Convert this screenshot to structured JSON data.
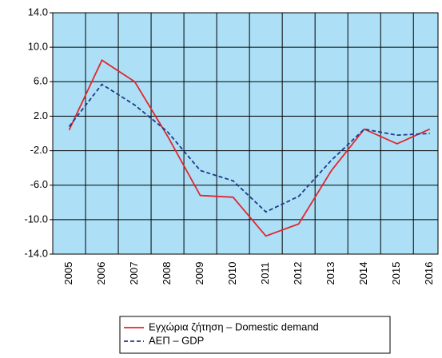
{
  "chart_data": {
    "type": "line",
    "categories": [
      "2005",
      "2006",
      "2007",
      "2008",
      "2009",
      "2010",
      "2011",
      "2012",
      "2013",
      "2014",
      "2015",
      "2016"
    ],
    "series": [
      {
        "name": "Εγχώρια ζήτηση – Domestic demand",
        "color": "#e3262d",
        "dash": false,
        "values": [
          0.4,
          8.5,
          6.0,
          -0.3,
          -7.2,
          -7.4,
          -11.9,
          -10.5,
          -4.3,
          0.5,
          -1.2,
          0.5
        ]
      },
      {
        "name": "ΑΕΠ – GDP",
        "color": "#1e3a8a",
        "dash": true,
        "values": [
          0.8,
          5.7,
          3.3,
          0.2,
          -4.3,
          -5.5,
          -9.1,
          -7.3,
          -3.1,
          0.5,
          -0.2,
          0.0
        ]
      }
    ],
    "ylim": [
      -14,
      14
    ],
    "yticks": [
      {
        "value": 14,
        "label": "14.0"
      },
      {
        "value": 10,
        "label": "10.0"
      },
      {
        "value": 6,
        "label": "6.0"
      },
      {
        "value": 2,
        "label": "2.0"
      },
      {
        "value": -2,
        "label": "-2.0"
      },
      {
        "value": -6,
        "label": "-6.0"
      },
      {
        "value": -10,
        "label": "-10.0"
      },
      {
        "value": -14,
        "label": "-14.0"
      }
    ],
    "grid": true,
    "background": "#ade0f6"
  }
}
